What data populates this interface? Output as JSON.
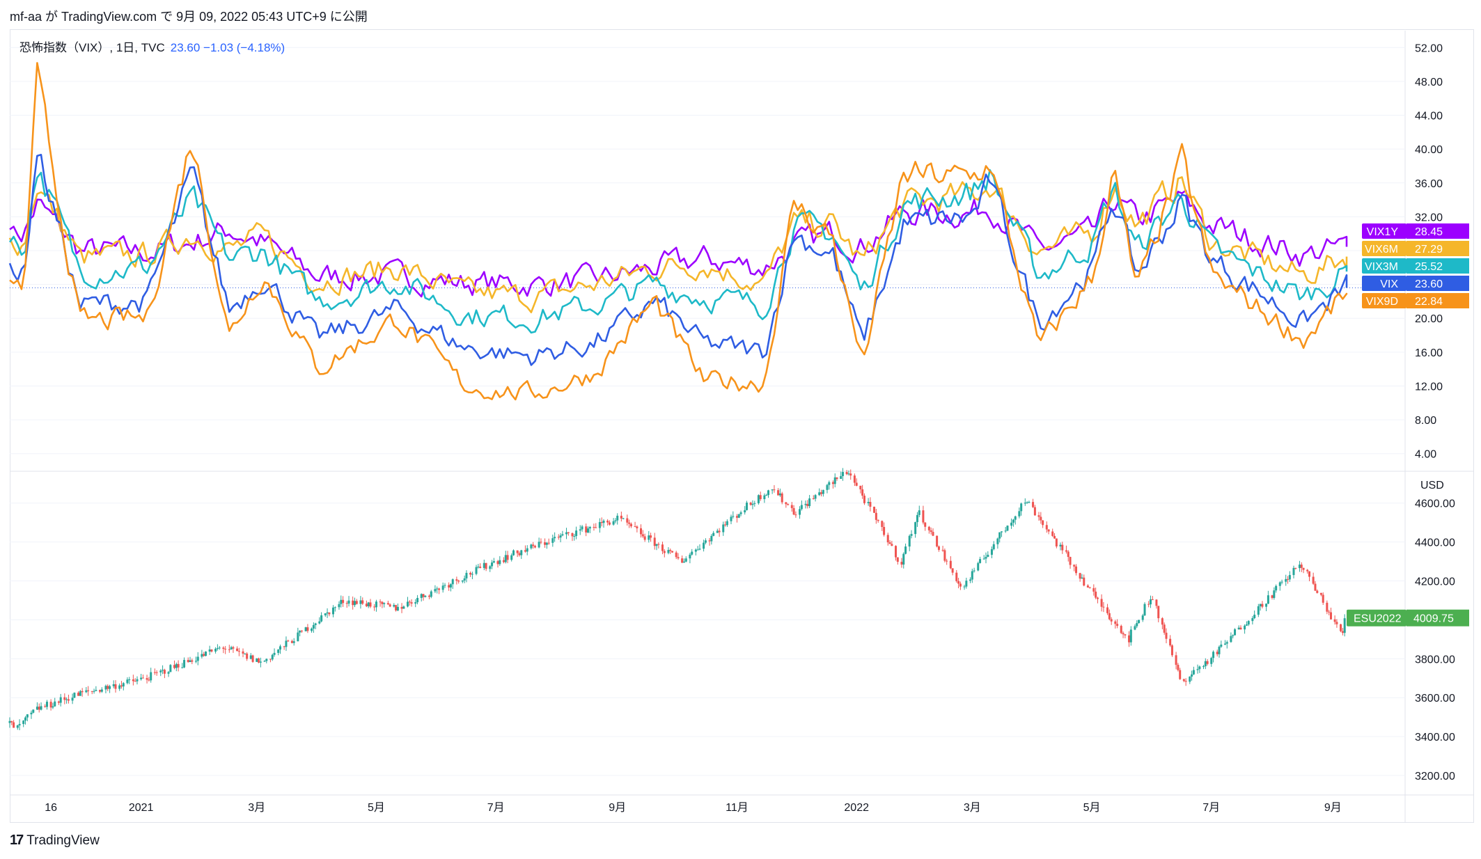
{
  "header": {
    "publish_line": "mf-aa が TradingView.com で 9月 09, 2022 05:43 UTC+9 に公開"
  },
  "legend": {
    "symbol": "恐怖指数（VIX）, 1日, TVC",
    "value": "23.60  −1.03 (−4.18%)"
  },
  "footer": {
    "brand": "TradingView"
  },
  "colors": {
    "VIX1Y": "#9c00ff",
    "VIX6M": "#f5b62a",
    "VIX3M": "#1eb9c8",
    "VIX": "#2f5de3",
    "VIX9D": "#f7931a",
    "up": "#26a69a",
    "down": "#ef5350",
    "es_badge": "#4caf50",
    "grid": "#f0f3fa"
  },
  "chart_data": [
    {
      "type": "line",
      "pane": "top",
      "ylim": [
        2,
        54
      ],
      "y_ticks": [
        "52.00",
        "48.00",
        "44.00",
        "40.00",
        "36.00",
        "32.00",
        "28.00",
        "24.00",
        "20.00",
        "16.00",
        "12.00",
        "8.00",
        "4.00"
      ],
      "y_tick_values": [
        52,
        48,
        44,
        40,
        36,
        32,
        28,
        24,
        20,
        16,
        12,
        8,
        4
      ],
      "x_date_range": [
        "2020-10-26",
        "2022-09-08"
      ],
      "series": [
        {
          "name": "VIX1Y",
          "last_label": "28.45",
          "color": "#9c00ff",
          "x": [
            "2020-10-26",
            "2020-11-02",
            "2020-11-09",
            "2020-12-01",
            "2021-01-04",
            "2021-01-27",
            "2021-02-15",
            "2021-03-04",
            "2021-04-01",
            "2021-05-12",
            "2021-06-15",
            "2021-07-19",
            "2021-08-20",
            "2021-09-20",
            "2021-10-15",
            "2021-11-15",
            "2021-11-30",
            "2021-12-20",
            "2022-01-04",
            "2022-01-25",
            "2022-03-01",
            "2022-03-10",
            "2022-04-04",
            "2022-05-02",
            "2022-05-12",
            "2022-05-24",
            "2022-06-16",
            "2022-07-01",
            "2022-08-17",
            "2022-09-08"
          ],
          "values": [
            30.5,
            30.0,
            33.5,
            28.0,
            27.8,
            29.0,
            30.5,
            29.0,
            25.0,
            25.0,
            24.2,
            24.0,
            24.5,
            26.0,
            27.0,
            26.0,
            28.5,
            30.0,
            28.5,
            32.5,
            32.5,
            33.5,
            28.0,
            30.0,
            34.0,
            31.5,
            34.0,
            31.0,
            27.5,
            28.45
          ]
        },
        {
          "name": "VIX6M",
          "last_label": "27.29",
          "color": "#f5b62a",
          "x": [
            "2020-10-26",
            "2020-11-02",
            "2020-11-09",
            "2020-12-01",
            "2021-01-04",
            "2021-01-27",
            "2021-02-15",
            "2021-03-04",
            "2021-04-01",
            "2021-05-12",
            "2021-06-15",
            "2021-07-19",
            "2021-08-20",
            "2021-09-20",
            "2021-10-15",
            "2021-11-15",
            "2021-11-30",
            "2021-12-20",
            "2022-01-04",
            "2022-01-25",
            "2022-03-01",
            "2022-03-10",
            "2022-04-04",
            "2022-05-02",
            "2022-05-12",
            "2022-05-24",
            "2022-06-16",
            "2022-07-01",
            "2022-08-17",
            "2022-09-08"
          ],
          "values": [
            29.5,
            29.0,
            36.0,
            27.0,
            27.5,
            30.0,
            28.0,
            29.5,
            24.5,
            26.0,
            23.0,
            22.5,
            24.0,
            26.0,
            26.5,
            24.0,
            31.0,
            31.0,
            26.5,
            33.5,
            34.5,
            36.0,
            28.0,
            30.0,
            36.0,
            31.0,
            36.5,
            29.0,
            25.0,
            27.29
          ]
        },
        {
          "name": "VIX3M",
          "last_label": "25.52",
          "color": "#1eb9c8",
          "x": [
            "2020-10-26",
            "2020-11-02",
            "2020-11-09",
            "2020-12-01",
            "2021-01-04",
            "2021-01-27",
            "2021-02-15",
            "2021-03-04",
            "2021-04-01",
            "2021-05-12",
            "2021-06-15",
            "2021-07-19",
            "2021-08-20",
            "2021-09-20",
            "2021-10-15",
            "2021-11-15",
            "2021-11-30",
            "2021-12-20",
            "2022-01-04",
            "2022-01-25",
            "2022-03-01",
            "2022-03-10",
            "2022-04-04",
            "2022-05-02",
            "2022-05-12",
            "2022-05-24",
            "2022-06-16",
            "2022-07-01",
            "2022-08-17",
            "2022-09-08"
          ],
          "values": [
            29.0,
            28.0,
            38.0,
            25.5,
            26.0,
            34.0,
            27.0,
            28.0,
            22.0,
            24.5,
            20.5,
            20.0,
            21.5,
            24.0,
            22.5,
            21.5,
            31.0,
            30.0,
            23.0,
            33.5,
            35.0,
            37.0,
            25.0,
            29.0,
            35.5,
            28.0,
            34.5,
            28.0,
            22.5,
            25.52
          ]
        },
        {
          "name": "VIX",
          "last_label": "23.60",
          "color": "#2f5de3",
          "x": [
            "2020-10-26",
            "2020-11-02",
            "2020-11-09",
            "2020-12-01",
            "2021-01-04",
            "2021-01-27",
            "2021-02-15",
            "2021-03-04",
            "2021-04-01",
            "2021-05-12",
            "2021-06-15",
            "2021-07-19",
            "2021-08-20",
            "2021-09-20",
            "2021-10-15",
            "2021-11-15",
            "2021-11-30",
            "2021-12-20",
            "2022-01-04",
            "2022-01-25",
            "2022-03-01",
            "2022-03-10",
            "2022-04-04",
            "2022-05-02",
            "2022-05-12",
            "2022-05-24",
            "2022-06-16",
            "2022-07-01",
            "2022-08-17",
            "2022-09-08"
          ],
          "values": [
            26.5,
            25.0,
            40.0,
            21.5,
            22.0,
            37.0,
            21.0,
            25.0,
            17.5,
            21.0,
            16.5,
            15.5,
            17.0,
            22.0,
            17.0,
            16.0,
            30.0,
            27.5,
            17.0,
            31.0,
            32.0,
            36.0,
            19.5,
            26.0,
            34.5,
            25.0,
            34.0,
            27.0,
            19.5,
            23.6
          ]
        },
        {
          "name": "VIX9D",
          "last_label": "22.84",
          "color": "#f7931a",
          "x": [
            "2020-10-26",
            "2020-11-02",
            "2020-11-09",
            "2020-12-01",
            "2021-01-04",
            "2021-01-27",
            "2021-02-15",
            "2021-03-04",
            "2021-04-01",
            "2021-05-12",
            "2021-06-15",
            "2021-07-19",
            "2021-08-20",
            "2021-09-20",
            "2021-10-15",
            "2021-11-15",
            "2021-11-30",
            "2021-12-20",
            "2022-01-04",
            "2022-01-25",
            "2022-03-01",
            "2022-03-10",
            "2022-04-04",
            "2022-05-02",
            "2022-05-12",
            "2022-05-24",
            "2022-06-16",
            "2022-07-01",
            "2022-08-17",
            "2022-09-08"
          ],
          "values": [
            24.5,
            23.0,
            48.0,
            19.5,
            20.0,
            41.5,
            18.0,
            25.5,
            14.0,
            20.0,
            12.0,
            11.0,
            13.5,
            22.0,
            12.5,
            12.5,
            33.5,
            29.5,
            14.5,
            37.0,
            36.5,
            38.5,
            16.5,
            25.0,
            37.5,
            23.0,
            38.5,
            25.0,
            17.5,
            22.84
          ]
        }
      ]
    },
    {
      "type": "candlestick",
      "pane": "bottom",
      "name": "ESU2022",
      "last_label": "4009.75",
      "unit": "USD",
      "ylim": [
        3100,
        4760
      ],
      "y_ticks": [
        "4600.00",
        "4400.00",
        "4200.00",
        "4000.00",
        "3800.00",
        "3600.00",
        "3400.00",
        "3200.00"
      ],
      "y_tick_values": [
        4600,
        4400,
        4200,
        4000,
        3800,
        3600,
        3400,
        3200
      ],
      "x": [
        "2020-10-26",
        "2020-10-30",
        "2020-11-09",
        "2020-12-01",
        "2021-01-04",
        "2021-02-12",
        "2021-03-04",
        "2021-04-15",
        "2021-05-12",
        "2021-06-10",
        "2021-07-01",
        "2021-08-01",
        "2021-09-02",
        "2021-10-04",
        "2021-11-01",
        "2021-11-19",
        "2021-12-01",
        "2021-12-28",
        "2022-01-24",
        "2022-02-02",
        "2022-02-24",
        "2022-03-29",
        "2022-05-02",
        "2022-05-20",
        "2022-06-01",
        "2022-06-16",
        "2022-07-01",
        "2022-08-16",
        "2022-09-06",
        "2022-09-08"
      ],
      "values": [
        3470,
        3440,
        3540,
        3620,
        3700,
        3860,
        3780,
        4100,
        4060,
        4200,
        4300,
        4420,
        4520,
        4300,
        4540,
        4680,
        4550,
        4770,
        4290,
        4560,
        4160,
        4620,
        4130,
        3900,
        4130,
        3680,
        3800,
        4290,
        3920,
        4009.75
      ]
    }
  ],
  "x_axis": {
    "ticks": [
      {
        "label": "16",
        "date": "2020-11-16"
      },
      {
        "label": "2021",
        "date": "2021-01-01"
      },
      {
        "label": "3月",
        "date": "2021-03-01"
      },
      {
        "label": "5月",
        "date": "2021-05-01"
      },
      {
        "label": "7月",
        "date": "2021-07-01"
      },
      {
        "label": "9月",
        "date": "2021-09-01"
      },
      {
        "label": "11月",
        "date": "2021-11-01"
      },
      {
        "label": "2022",
        "date": "2022-01-01"
      },
      {
        "label": "3月",
        "date": "2022-03-01"
      },
      {
        "label": "5月",
        "date": "2022-05-01"
      },
      {
        "label": "7月",
        "date": "2022-07-01"
      },
      {
        "label": "9月",
        "date": "2022-09-01"
      }
    ]
  }
}
